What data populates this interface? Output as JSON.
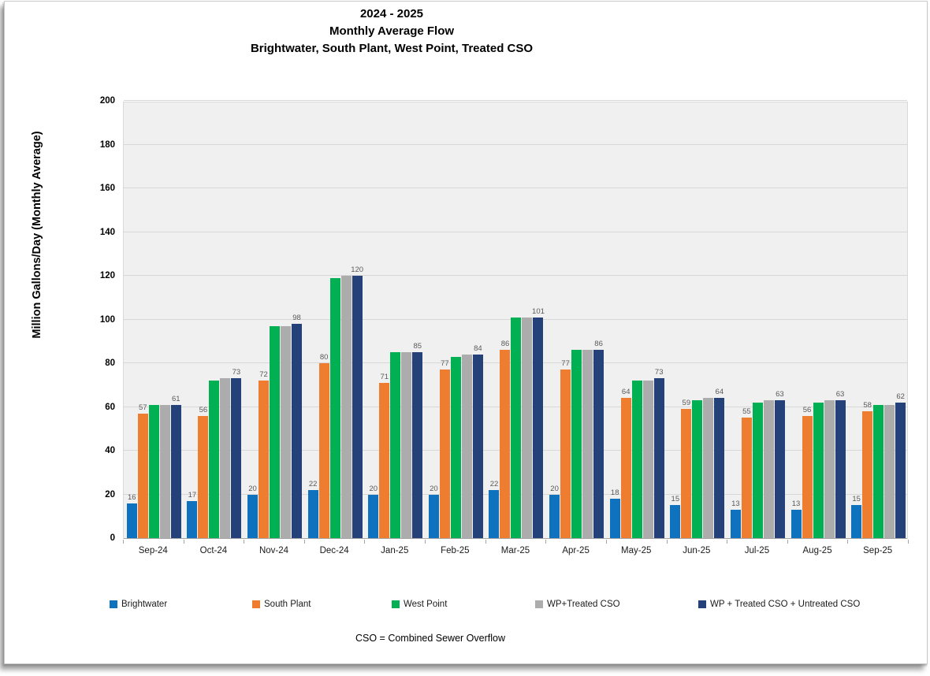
{
  "header": {
    "title_lines": [
      "2024 - 2025",
      "Monthly Average Flow",
      "Brightwater, South Plant, West Point, Treated CSO"
    ]
  },
  "chart_data": {
    "type": "bar",
    "title": "2024 - 2025 Monthly Average Flow",
    "subtitle": "Brightwater, South Plant, West Point, Treated CSO",
    "xlabel": "",
    "ylabel": "Million Gallons/Day (Monthly Average)",
    "ylim": [
      0,
      200
    ],
    "ytick_step": 20,
    "grid": true,
    "legend_position": "bottom",
    "plot_background": "#f0f0f1",
    "categories": [
      "Sep-24",
      "Oct-24",
      "Nov-24",
      "Dec-24",
      "Jan-25",
      "Feb-25",
      "Mar-25",
      "Apr-25",
      "May-25",
      "Jun-25",
      "Jul-25",
      "Aug-25",
      "Sep-25"
    ],
    "series": [
      {
        "name": "Brightwater",
        "color": "#0e72be",
        "labels_shown": true,
        "values": [
          16,
          17,
          20,
          22,
          20,
          20,
          22,
          20,
          18,
          15,
          13,
          13,
          15
        ]
      },
      {
        "name": "South Plant",
        "color": "#ee7d30",
        "labels_shown": true,
        "values": [
          57,
          56,
          72,
          80,
          71,
          77,
          86,
          77,
          64,
          59,
          55,
          56,
          58
        ]
      },
      {
        "name": "West Point",
        "color": "#00b052",
        "labels_shown": false,
        "values": [
          61,
          72,
          97,
          119,
          85,
          83,
          101,
          86,
          72,
          63,
          62,
          62,
          61
        ]
      },
      {
        "name": "WP+Treated CSO",
        "color": "#acacac",
        "labels_shown": false,
        "values": [
          61,
          73,
          97,
          120,
          85,
          84,
          101,
          86,
          72,
          64,
          63,
          63,
          61
        ]
      },
      {
        "name": "WP + Treated CSO + Untreated CSO",
        "color": "#24417a",
        "labels_shown": true,
        "values": [
          61,
          73,
          98,
          120,
          85,
          84,
          101,
          86,
          73,
          64,
          63,
          63,
          62
        ]
      }
    ]
  },
  "footer": {
    "note": "CSO = Combined Sewer Overflow"
  }
}
